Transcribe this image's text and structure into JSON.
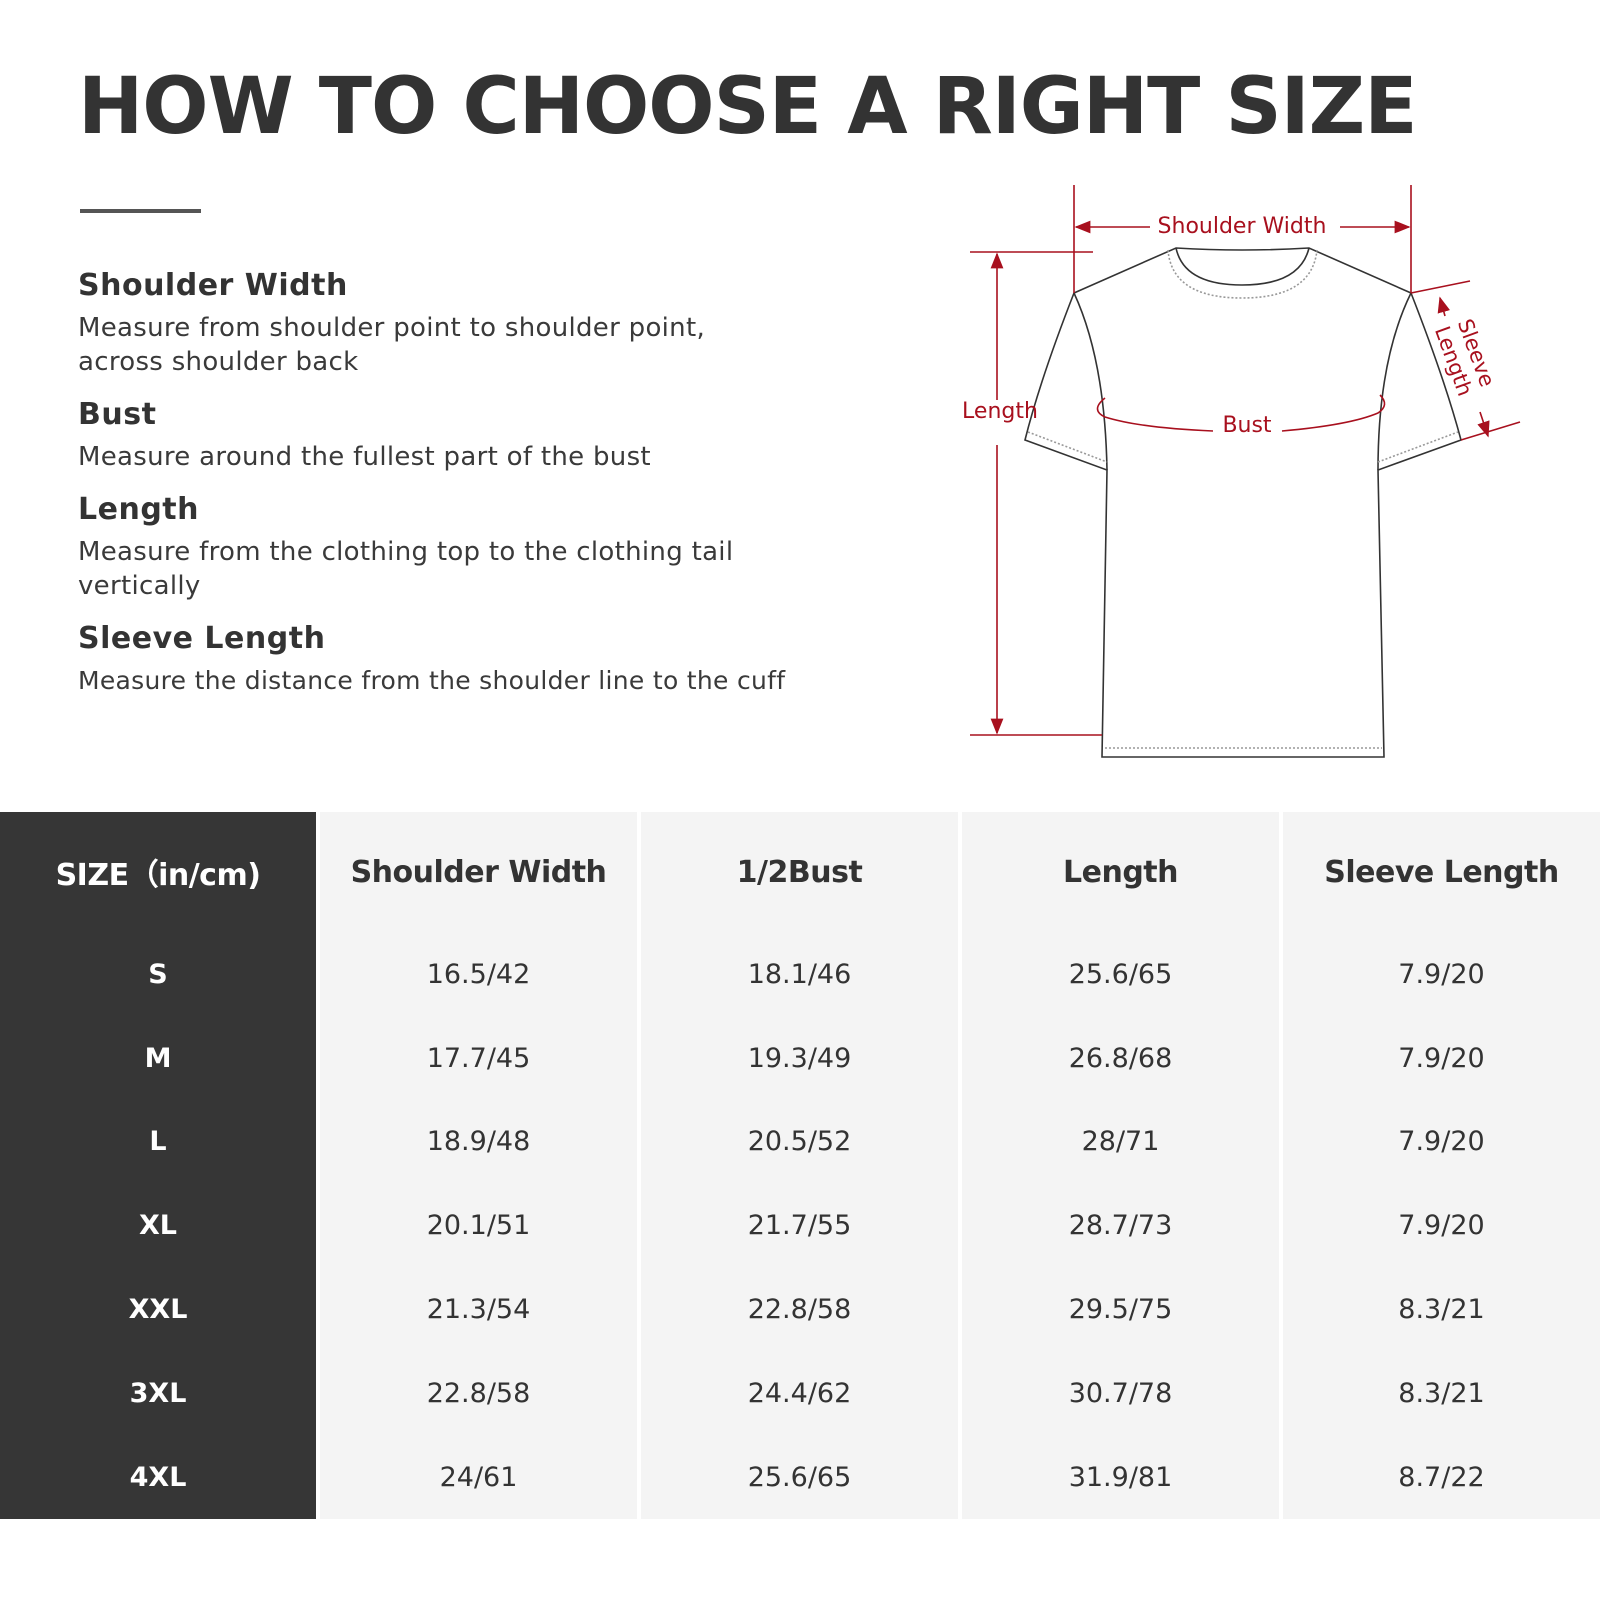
{
  "title": "HOW TO CHOOSE A RIGHT SIZE",
  "definitions": [
    {
      "heading": "Shoulder Width",
      "text": "Measure from shoulder point to shoulder point, across shoulder back"
    },
    {
      "heading": "Bust",
      "text": "Measure around the fullest part of the bust"
    },
    {
      "heading": "Length",
      "text": "Measure from the clothing top to the clothing tail vertically"
    },
    {
      "heading": "Sleeve Length",
      "text": "Measure the distance from the shoulder line to the cuff"
    }
  ],
  "diagram": {
    "labels": {
      "shoulder": "Shoulder Width",
      "length": "Length",
      "bust": "Bust",
      "sleeve_1": "Sleeve",
      "sleeve_2": "Length"
    },
    "accent_color": "#a8101e"
  },
  "table": {
    "headers": [
      "SIZE（in/cm)",
      "Shoulder Width",
      "1/2Bust",
      "Length",
      "Sleeve Length"
    ],
    "sizes": [
      "S",
      "M",
      "L",
      "XL",
      "XXL",
      "3XL",
      "4XL"
    ],
    "columns": [
      [
        "16.5/42",
        "17.7/45",
        "18.9/48",
        "20.1/51",
        "21.3/54",
        "22.8/58",
        "24/61"
      ],
      [
        "18.1/46",
        "19.3/49",
        "20.5/52",
        "21.7/55",
        "22.8/58",
        "24.4/62",
        "25.6/65"
      ],
      [
        "25.6/65",
        "26.8/68",
        "28/71",
        "28.7/73",
        "29.5/75",
        "30.7/78",
        "31.9/81"
      ],
      [
        "7.9/20",
        "7.9/20",
        "7.9/20",
        "7.9/20",
        "8.3/21",
        "8.3/21",
        "8.7/22"
      ]
    ]
  }
}
